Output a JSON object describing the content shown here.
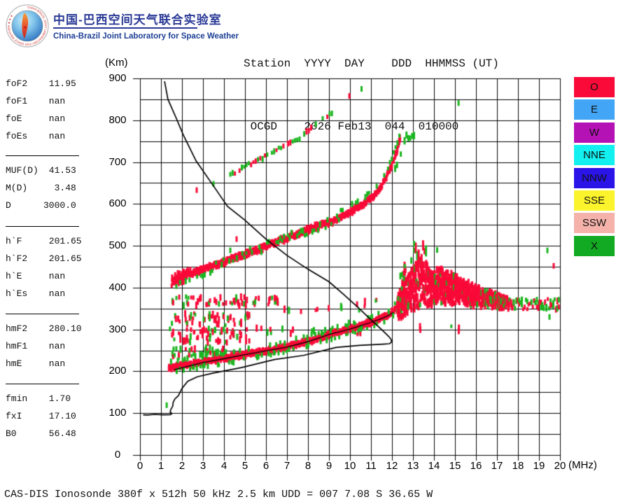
{
  "header": {
    "title_zh": "中国-巴西空间天气联合实验室",
    "title_en": "China-Brazil Joint Laboratory for Space Weather",
    "station_line1": "Station  YYYY  DAY    DDD  HHMMSS (UT)",
    "station_line2": " OCGD    2026 Feb13  044  010000"
  },
  "params": {
    "groups": [
      {
        "rows": [
          {
            "label": "foF2",
            "value": " 11.95"
          },
          {
            "label": "foF1",
            "value": " nan"
          },
          {
            "label": "foE",
            "value": " nan"
          },
          {
            "label": "foEs",
            "value": " nan"
          }
        ]
      },
      {
        "rows": [
          {
            "label": "MUF(D)",
            "value": " 41.53"
          },
          {
            "label": "M(D)",
            "value": "  3.48"
          },
          {
            "label": "D",
            "value": "3000.0"
          }
        ]
      },
      {
        "rows": [
          {
            "label": "h`F",
            "value": " 201.65"
          },
          {
            "label": "h`F2",
            "value": " 201.65"
          },
          {
            "label": "h`E",
            "value": " nan"
          },
          {
            "label": "h`Es",
            "value": " nan"
          }
        ]
      },
      {
        "rows": [
          {
            "label": "hmF2",
            "value": " 280.10"
          },
          {
            "label": "hmF1",
            "value": " nan"
          },
          {
            "label": "hmE",
            "value": " nan"
          }
        ]
      },
      {
        "rows": [
          {
            "label": "fmin",
            "value": " 1.70"
          },
          {
            "label": "fxI",
            "value": " 17.10"
          },
          {
            "label": "B0",
            "value": " 56.48"
          }
        ]
      }
    ]
  },
  "legend": {
    "items": [
      {
        "label": "O",
        "color": "#f90a38"
      },
      {
        "label": "E",
        "color": "#42a5f5"
      },
      {
        "label": "W",
        "color": "#b512b5"
      },
      {
        "label": "NNE",
        "color": "#12f0f0"
      },
      {
        "label": "NNW",
        "color": "#2a14e8"
      },
      {
        "label": "SSE",
        "color": "#fbf32b"
      },
      {
        "label": "SSW",
        "color": "#f5b2aa"
      },
      {
        "label": "X",
        "color": "#11aa22"
      }
    ]
  },
  "caption": "CAS-DIS Ionosonde 380f x 512h 50 kHz 2.5 km UDD = 007 7.08 S 36.65 W",
  "chart_data": {
    "type": "scatter",
    "title": "Ionogram OCGD 2026 Feb13 044 010000 UT",
    "xlabel": "(MHz)",
    "ylabel": "(Km)",
    "xlim": [
      0,
      20
    ],
    "ylim": [
      0,
      900
    ],
    "x_ticks": [
      0,
      1,
      2,
      3,
      4,
      5,
      6,
      7,
      8,
      9,
      10,
      11,
      12,
      13,
      14,
      15,
      16,
      17,
      18,
      19,
      20
    ],
    "y_ticks": [
      0,
      100,
      200,
      300,
      400,
      500,
      600,
      700,
      800,
      900
    ],
    "grid": {
      "x_step_mhz": 1,
      "y_step_km": 50,
      "color": "#000000"
    },
    "colors": {
      "o_mode": "#f90a38",
      "x_mode": "#1ab51e",
      "curve": "#000000"
    },
    "f_trace": {
      "name": "F-region main trace (1st hop, O-mode with X-mode fringe)",
      "points": [
        [
          1.38,
          208
        ],
        [
          2,
          214
        ],
        [
          3,
          222
        ],
        [
          4,
          231
        ],
        [
          5,
          240
        ],
        [
          6,
          249
        ],
        [
          7,
          259
        ],
        [
          8,
          271
        ],
        [
          9,
          287
        ],
        [
          10,
          302
        ],
        [
          10.5,
          309
        ],
        [
          11,
          317
        ],
        [
          11.5,
          327
        ],
        [
          11.9,
          336
        ],
        [
          12.15,
          348
        ],
        [
          12.35,
          365
        ],
        [
          12.5,
          392
        ],
        [
          12.58,
          425
        ],
        [
          12.62,
          455
        ]
      ],
      "spread_start_mhz": 12.25
    },
    "f_trace_2hop": {
      "name": "F-region 2nd hop multiple",
      "points": [
        [
          1.55,
          413
        ],
        [
          2,
          426
        ],
        [
          2.5,
          435
        ],
        [
          3,
          444
        ],
        [
          4,
          462
        ],
        [
          5,
          480
        ],
        [
          6,
          498
        ],
        [
          7,
          519
        ],
        [
          8,
          538
        ],
        [
          9,
          556
        ],
        [
          9.8,
          573
        ],
        [
          10.4,
          592
        ],
        [
          11,
          612
        ],
        [
          11.4,
          636
        ],
        [
          11.7,
          660
        ],
        [
          12,
          695
        ],
        [
          12.2,
          722
        ],
        [
          12.35,
          748
        ],
        [
          12.42,
          758
        ]
      ]
    },
    "f_trace_3hop": {
      "name": "F-region 3rd hop multiple",
      "points": [
        [
          4.3,
          668
        ],
        [
          5,
          690
        ],
        [
          5.7,
          706
        ],
        [
          6.4,
          729
        ],
        [
          7,
          740
        ],
        [
          7.6,
          757
        ],
        [
          8.2,
          783
        ],
        [
          8.8,
          806
        ],
        [
          9.25,
          823
        ]
      ]
    },
    "spread_f_cloud": {
      "name": "Spread-F / oblique echo cloud",
      "bottom": [
        [
          12.3,
          322
        ],
        [
          12.8,
          338
        ],
        [
          13.3,
          350
        ],
        [
          14,
          360
        ],
        [
          15,
          362
        ],
        [
          16,
          356
        ],
        [
          17,
          352
        ],
        [
          17.6,
          349
        ]
      ],
      "top": [
        [
          12.3,
          358
        ],
        [
          12.7,
          418
        ],
        [
          13.2,
          472
        ],
        [
          13.6,
          458
        ],
        [
          14,
          448
        ],
        [
          14.6,
          440
        ],
        [
          15,
          430
        ],
        [
          15.5,
          414
        ],
        [
          16,
          402
        ],
        [
          16.5,
          392
        ],
        [
          17,
          384
        ],
        [
          17.6,
          371
        ]
      ],
      "spike_range_mhz": [
        12.85,
        13.65
      ],
      "spike_top_km": 510
    },
    "right_trail": {
      "x_range": [
        17.6,
        20
      ],
      "y_range": [
        348,
        373
      ],
      "green_fraction": 0.55
    },
    "stratification_bands": [
      {
        "x_range": [
          1.45,
          6.6
        ],
        "y_range": [
          356,
          380
        ],
        "density": 0.62,
        "green_fraction": 0.3
      },
      {
        "x_range": [
          6.6,
          9.0
        ],
        "y_range": [
          340,
          352
        ],
        "density": 0.16,
        "green_fraction": 0.2
      },
      {
        "x_range": [
          1.45,
          5.3
        ],
        "y_range": [
          310,
          340
        ],
        "density": 0.5,
        "green_fraction": 0.35
      },
      {
        "x_range": [
          1.45,
          5.3
        ],
        "y_range": [
          268,
          303
        ],
        "density": 0.78,
        "green_fraction": 0.22
      },
      {
        "x_range": [
          5.3,
          10.6
        ],
        "y_range": [
          288,
          310
        ],
        "density": 0.2,
        "green_fraction": 0.35
      },
      {
        "x_range": [
          1.45,
          4.1
        ],
        "y_range": [
          233,
          258
        ],
        "density": 0.6,
        "green_fraction": 0.62
      },
      {
        "x_range": [
          9.5,
          12.1
        ],
        "y_range": [
          330,
          392
        ],
        "density": 0.18,
        "green_fraction": 0.5
      },
      {
        "x_range": [
          12.1,
          15.2
        ],
        "y_range": [
          290,
          312
        ],
        "density": 0.12,
        "green_fraction": 0.15
      }
    ],
    "isolated_points": [
      [
        9.97,
        858,
        "r"
      ],
      [
        10.55,
        875,
        "g"
      ],
      [
        15.17,
        841,
        "g"
      ],
      [
        2.7,
        633,
        "r"
      ],
      [
        3.5,
        648,
        "g"
      ],
      [
        4.6,
        516,
        "r"
      ],
      [
        4.3,
        489,
        "g"
      ],
      [
        1.27,
        119,
        "g"
      ],
      [
        19.5,
        330,
        "g"
      ],
      [
        19.4,
        489,
        "g"
      ],
      [
        19.7,
        452,
        "r"
      ],
      [
        13.05,
        505,
        "g"
      ],
      [
        14.15,
        490,
        "g"
      ]
    ],
    "profile_curve": {
      "name": "fitted O-trace / true-height overlay",
      "points": [
        [
          1.62,
          204
        ],
        [
          2.2,
          211
        ],
        [
          3,
          221
        ],
        [
          4,
          230
        ],
        [
          5,
          240
        ],
        [
          6,
          249
        ],
        [
          7,
          258
        ],
        [
          8,
          271
        ],
        [
          9,
          288
        ],
        [
          10,
          301
        ],
        [
          10.4,
          307
        ],
        [
          11,
          317
        ],
        [
          11.5,
          326
        ],
        [
          11.9,
          335
        ],
        [
          12.05,
          341
        ]
      ]
    },
    "transmission_curve": {
      "name": "MUF transmission curve + profile return branch",
      "points": [
        [
          1.17,
          893
        ],
        [
          1.33,
          850
        ],
        [
          1.7,
          808
        ],
        [
          2.06,
          765
        ],
        [
          2.67,
          703
        ],
        [
          3.43,
          648
        ],
        [
          4.17,
          594
        ],
        [
          5,
          561
        ],
        [
          6,
          516
        ],
        [
          7,
          477
        ],
        [
          8,
          444
        ],
        [
          9,
          414
        ],
        [
          9.67,
          385
        ],
        [
          10.4,
          352
        ],
        [
          11,
          323
        ],
        [
          11.5,
          300
        ],
        [
          11.85,
          283
        ],
        [
          11.96,
          276
        ],
        [
          11.98,
          270
        ],
        [
          11.88,
          266
        ],
        [
          11.6,
          265
        ],
        [
          10.45,
          262
        ],
        [
          9.33,
          257
        ],
        [
          7.78,
          238
        ],
        [
          6.4,
          228
        ],
        [
          4.83,
          209
        ],
        [
          3.5,
          196
        ],
        [
          2.73,
          187
        ],
        [
          2.27,
          176
        ],
        [
          2.0,
          159
        ],
        [
          1.83,
          142
        ],
        [
          1.66,
          134
        ],
        [
          1.58,
          126
        ],
        [
          1.56,
          117
        ],
        [
          1.46,
          108
        ],
        [
          1.44,
          102
        ],
        [
          1.52,
          99
        ],
        [
          1.45,
          96.5
        ],
        [
          1.1,
          96
        ],
        [
          0.7,
          97
        ],
        [
          0.35,
          95.5
        ],
        [
          0.15,
          96
        ]
      ]
    }
  }
}
